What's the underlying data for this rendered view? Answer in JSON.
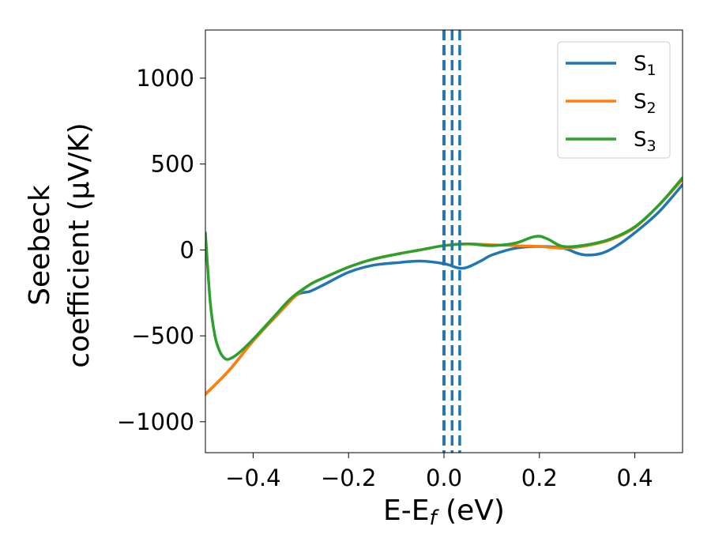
{
  "chart_data": {
    "type": "line",
    "xlabel": "E-E",
    "xlabel_sub": "f",
    "xlabel_unit": " (eV)",
    "ylabel_line1": "Seebeck",
    "ylabel_line2": "coefficient  (μV/K)",
    "xlim": [
      -0.5,
      0.5
    ],
    "ylim": [
      -1180,
      1280
    ],
    "xticks": [
      -0.4,
      -0.2,
      0.0,
      0.2,
      0.4
    ],
    "xtick_labels": [
      "−0.4",
      "−0.2",
      "0.0",
      "0.2",
      "0.4"
    ],
    "yticks": [
      -1000,
      -500,
      0,
      500,
      1000
    ],
    "ytick_labels": [
      "−1000",
      "−500",
      "0",
      "500",
      "1000"
    ],
    "grid": false,
    "legend_position": "top-right",
    "vlines": [
      {
        "x": 0.0,
        "color": "#000000",
        "style": "dashed"
      },
      {
        "x": 0.0,
        "color": "#1f77b4",
        "style": "dashed"
      },
      {
        "x": 0.017,
        "color": "#1f77b4",
        "style": "dashed"
      },
      {
        "x": 0.033,
        "color": "#1f77b4",
        "style": "dashed"
      }
    ],
    "series": [
      {
        "name": "S",
        "sub": "1",
        "color": "#1f77b4",
        "x": [
          -0.5,
          -0.45,
          -0.4,
          -0.35,
          -0.31,
          -0.28,
          -0.25,
          -0.2,
          -0.15,
          -0.1,
          -0.05,
          0.0,
          0.03,
          0.05,
          0.08,
          0.1,
          0.15,
          0.2,
          0.25,
          0.28,
          0.3,
          0.33,
          0.36,
          0.4,
          0.45,
          0.5
        ],
        "y": [
          -840,
          -700,
          -530,
          -380,
          -265,
          -240,
          -200,
          -130,
          -90,
          -75,
          -65,
          -80,
          -105,
          -100,
          -60,
          -30,
          10,
          20,
          10,
          -20,
          -30,
          -20,
          20,
          100,
          220,
          380
        ]
      },
      {
        "name": "S",
        "sub": "2",
        "color": "#ff7f0e",
        "x": [
          -0.5,
          -0.45,
          -0.4,
          -0.35,
          -0.31,
          -0.28,
          -0.25,
          -0.2,
          -0.15,
          -0.1,
          -0.05,
          0.0,
          0.05,
          0.1,
          0.15,
          0.2,
          0.25,
          0.3,
          0.35,
          0.4,
          0.45,
          0.5
        ],
        "y": [
          -840,
          -700,
          -530,
          -380,
          -265,
          -200,
          -160,
          -100,
          -55,
          -25,
          0,
          25,
          35,
          30,
          25,
          20,
          10,
          25,
          60,
          130,
          260,
          410
        ]
      },
      {
        "name": "S",
        "sub": "3",
        "color": "#2ca02c",
        "x": [
          -0.5,
          -0.49,
          -0.48,
          -0.47,
          -0.46,
          -0.45,
          -0.43,
          -0.4,
          -0.36,
          -0.32,
          -0.28,
          -0.25,
          -0.2,
          -0.15,
          -0.1,
          -0.05,
          0.0,
          0.05,
          0.1,
          0.15,
          0.18,
          0.2,
          0.22,
          0.25,
          0.3,
          0.35,
          0.4,
          0.45,
          0.5
        ],
        "y": [
          100,
          -300,
          -500,
          -590,
          -630,
          -635,
          -600,
          -520,
          -400,
          -280,
          -200,
          -160,
          -100,
          -55,
          -25,
          0,
          25,
          35,
          25,
          40,
          70,
          80,
          60,
          20,
          30,
          65,
          135,
          260,
          420
        ]
      }
    ]
  }
}
